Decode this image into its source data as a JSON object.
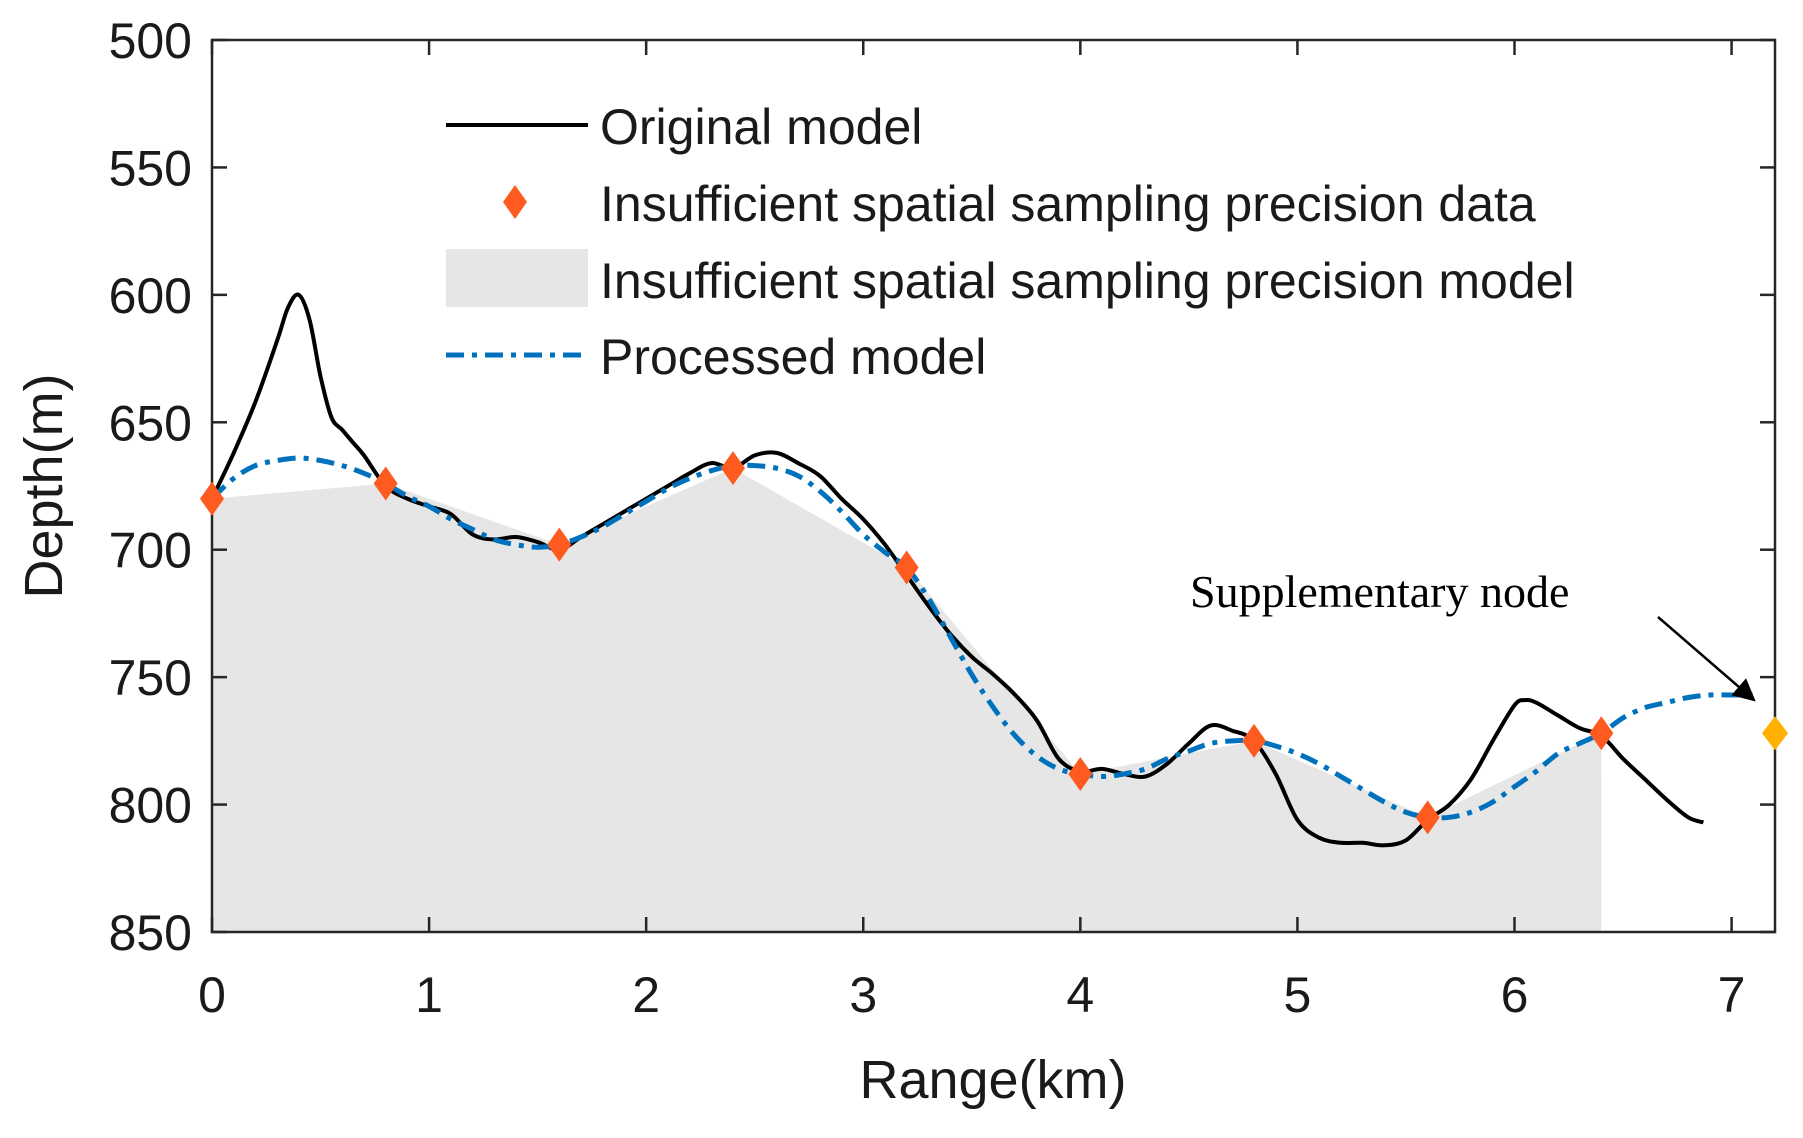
{
  "chart_data": {
    "type": "line",
    "xlabel": "Range(km)",
    "ylabel": "Depth(m)",
    "xlim": [
      0,
      7.2
    ],
    "ylim": [
      500,
      850
    ],
    "y_reversed": true,
    "x_ticks": [
      0,
      1,
      2,
      3,
      4,
      5,
      6,
      7
    ],
    "y_ticks": [
      500,
      550,
      600,
      650,
      700,
      750,
      800,
      850
    ],
    "legend": {
      "placement": "top-center",
      "entries": [
        {
          "key": "original",
          "label": "Original model"
        },
        {
          "key": "data",
          "label": "Insufficient spatial sampling precision data"
        },
        {
          "key": "area",
          "label": "Insufficient spatial sampling precision model"
        },
        {
          "key": "processed",
          "label": "Processed model"
        }
      ]
    },
    "series": [
      {
        "name": "Original model",
        "style": "solid",
        "color": "#000000",
        "x": [
          0,
          0.1,
          0.2,
          0.3,
          0.35,
          0.4,
          0.45,
          0.5,
          0.55,
          0.6,
          0.65,
          0.7,
          0.8,
          0.9,
          1.0,
          1.1,
          1.2,
          1.3,
          1.4,
          1.5,
          1.6,
          1.7,
          1.8,
          1.9,
          2.0,
          2.1,
          2.2,
          2.3,
          2.4,
          2.5,
          2.6,
          2.7,
          2.8,
          2.9,
          3.0,
          3.1,
          3.2,
          3.3,
          3.4,
          3.5,
          3.6,
          3.7,
          3.8,
          3.9,
          4.0,
          4.1,
          4.2,
          4.3,
          4.4,
          4.5,
          4.6,
          4.7,
          4.8,
          4.9,
          5.0,
          5.1,
          5.2,
          5.3,
          5.4,
          5.5,
          5.6,
          5.7,
          5.8,
          5.9,
          6.0,
          6.05,
          6.1,
          6.2,
          6.3,
          6.4,
          6.5,
          6.6,
          6.7,
          6.8,
          6.87
        ],
        "y": [
          680,
          662,
          642,
          618,
          605,
          600,
          610,
          632,
          648,
          653,
          658,
          663,
          675,
          680,
          683,
          686,
          694,
          696,
          695,
          697,
          700,
          695,
          690,
          685,
          680,
          675,
          670,
          666,
          668,
          663,
          662,
          666,
          671,
          680,
          688,
          698,
          710,
          722,
          733,
          742,
          749,
          757,
          767,
          782,
          787,
          786,
          788,
          789,
          784,
          776,
          769,
          771,
          775,
          788,
          806,
          813,
          815,
          815,
          816,
          814,
          806,
          800,
          790,
          775,
          761,
          759,
          760,
          765,
          770,
          773,
          782,
          790,
          798,
          805,
          807
        ]
      },
      {
        "name": "Insufficient spatial sampling precision data",
        "style": "markers",
        "marker": "diamond",
        "color": "#ff5a1f",
        "x": [
          0,
          0.8,
          1.6,
          2.4,
          3.2,
          4.0,
          4.8,
          5.6,
          6.4
        ],
        "y": [
          680,
          674,
          698,
          668,
          707,
          788,
          775,
          805,
          772
        ]
      },
      {
        "name": "Insufficient spatial sampling precision model",
        "style": "area",
        "color": "#e6e6e6",
        "baseline": 850,
        "x": [
          0,
          0.8,
          1.6,
          2.4,
          3.2,
          4.0,
          4.8,
          5.6,
          6.4
        ],
        "y": [
          680,
          674,
          698,
          668,
          707,
          788,
          775,
          805,
          772
        ]
      },
      {
        "name": "Processed model",
        "style": "dashdot",
        "color": "#0072bd",
        "x": [
          0,
          0.1,
          0.2,
          0.3,
          0.4,
          0.5,
          0.6,
          0.7,
          0.8,
          0.9,
          1.0,
          1.1,
          1.2,
          1.3,
          1.4,
          1.5,
          1.6,
          1.7,
          1.8,
          1.9,
          2.0,
          2.1,
          2.2,
          2.3,
          2.4,
          2.5,
          2.6,
          2.7,
          2.8,
          2.9,
          3.0,
          3.1,
          3.2,
          3.3,
          3.4,
          3.5,
          3.6,
          3.7,
          3.8,
          3.9,
          4.0,
          4.1,
          4.2,
          4.3,
          4.4,
          4.5,
          4.6,
          4.7,
          4.8,
          4.9,
          5.0,
          5.1,
          5.2,
          5.3,
          5.4,
          5.5,
          5.6,
          5.7,
          5.8,
          5.9,
          6.0,
          6.1,
          6.2,
          6.3,
          6.4,
          6.5,
          6.6,
          6.7,
          6.8,
          6.9,
          7.0,
          7.1
        ],
        "y": [
          680,
          672,
          667,
          665,
          664,
          665,
          667,
          670,
          674,
          679,
          683,
          688,
          692,
          696,
          698,
          699,
          698,
          695,
          691,
          686,
          681,
          676,
          672,
          669,
          667,
          667,
          668,
          671,
          677,
          685,
          694,
          701,
          707,
          719,
          734,
          749,
          762,
          773,
          781,
          786,
          788,
          789,
          788,
          786,
          782,
          779,
          776,
          775,
          775,
          777,
          780,
          784,
          789,
          794,
          799,
          803,
          805,
          805,
          803,
          799,
          793,
          787,
          780,
          776,
          772,
          766,
          762,
          760,
          758,
          757,
          757,
          757
        ]
      }
    ],
    "supplementary_node": {
      "x": 7.2,
      "y": 772,
      "color": "#ffb000"
    },
    "annotations": [
      {
        "text": "Supplementary node",
        "points_to": "supplementary_node"
      }
    ]
  }
}
